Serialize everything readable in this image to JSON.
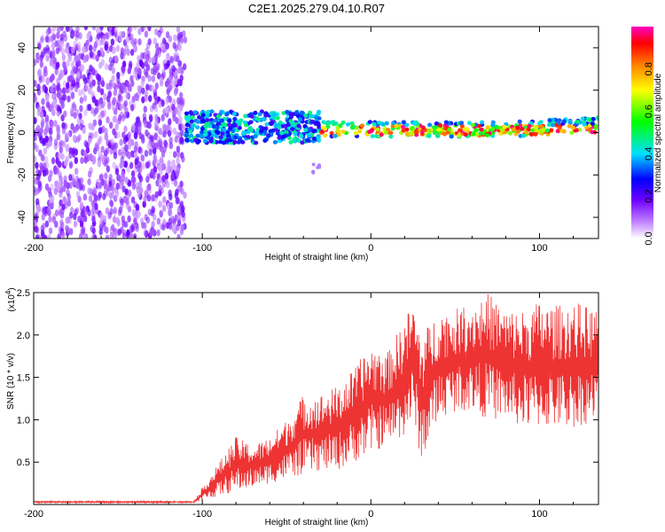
{
  "title": "C2E1.2025.279.04.10.R07",
  "chart_data": [
    {
      "type": "heatmap",
      "name": "spectrogram",
      "xlabel": "Height of straight line (km)",
      "ylabel": "Frequency (Hz)",
      "xlim": [
        -200,
        135
      ],
      "ylim": [
        -50,
        50
      ],
      "xticks": [
        -200,
        -100,
        0,
        100
      ],
      "xtick_labels": [
        "-200",
        "-100",
        "0",
        "100"
      ],
      "yticks": [
        -40,
        -20,
        0,
        20,
        40
      ],
      "ytick_labels": [
        "-40",
        "-20",
        "0",
        "20",
        "40"
      ],
      "colorbar": {
        "label": "Normalized spectral amplitude",
        "range": [
          0,
          1
        ],
        "ticks": [
          0.0,
          0.2,
          0.4,
          0.6,
          0.8
        ],
        "tick_labels": [
          "0.0",
          "0.2",
          "0.4",
          "0.6",
          "0.8"
        ],
        "colors": [
          "#ffffff",
          "#a000ff",
          "#0000ff",
          "#00ffff",
          "#00ff00",
          "#ffff00",
          "#ff8000",
          "#ff0000",
          "#ff00ff"
        ]
      },
      "regions": [
        {
          "x": [
            -200,
            -110
          ],
          "freq": [
            -50,
            50
          ],
          "amplitude": [
            0.05,
            0.2
          ],
          "description_color": "violet"
        },
        {
          "x": [
            -110,
            -30
          ],
          "freq": [
            -5,
            10
          ],
          "amplitude": [
            0.2,
            0.5
          ]
        },
        {
          "x": [
            -30,
            135
          ],
          "freq": [
            -2,
            5
          ],
          "amplitude": [
            0.5,
            1.0
          ]
        }
      ]
    },
    {
      "type": "line",
      "name": "snr",
      "xlabel": "Height of straight line (km)",
      "ylabel": "SNR (10 * v/v)",
      "scale_label": "(x10",
      "scale_exponent": "4",
      "xlim": [
        -200,
        135
      ],
      "ylim": [
        0,
        2.5
      ],
      "xticks": [
        -200,
        -100,
        0,
        100
      ],
      "xtick_labels": [
        "-200",
        "-100",
        "0",
        "100"
      ],
      "yticks": [
        0.5,
        1.0,
        1.5,
        2.0,
        2.5
      ],
      "ytick_labels": [
        "0.5",
        "1.0",
        "1.5",
        "2.0",
        "2.5"
      ],
      "color": "#ee3333",
      "envelope": {
        "x": [
          -200,
          -105,
          -100,
          -90,
          -80,
          -70,
          -60,
          -50,
          -40,
          -30,
          -20,
          -10,
          0,
          10,
          20,
          25,
          30,
          40,
          50,
          60,
          70,
          80,
          90,
          100,
          110,
          120,
          135
        ],
        "low": [
          0.02,
          0.02,
          0.05,
          0.1,
          0.15,
          0.2,
          0.25,
          0.3,
          0.35,
          0.4,
          0.4,
          0.5,
          0.6,
          0.7,
          0.8,
          1.0,
          0.5,
          1.0,
          1.1,
          1.1,
          1.0,
          1.0,
          0.9,
          0.9,
          0.9,
          0.9,
          1.0
        ],
        "high": [
          0.04,
          0.04,
          0.2,
          0.5,
          0.8,
          0.7,
          0.8,
          1.0,
          1.3,
          1.3,
          1.4,
          1.6,
          1.9,
          1.8,
          2.2,
          2.4,
          2.0,
          2.3,
          2.3,
          2.4,
          2.5,
          2.3,
          2.3,
          2.4,
          2.35,
          2.4,
          2.3
        ]
      }
    }
  ]
}
